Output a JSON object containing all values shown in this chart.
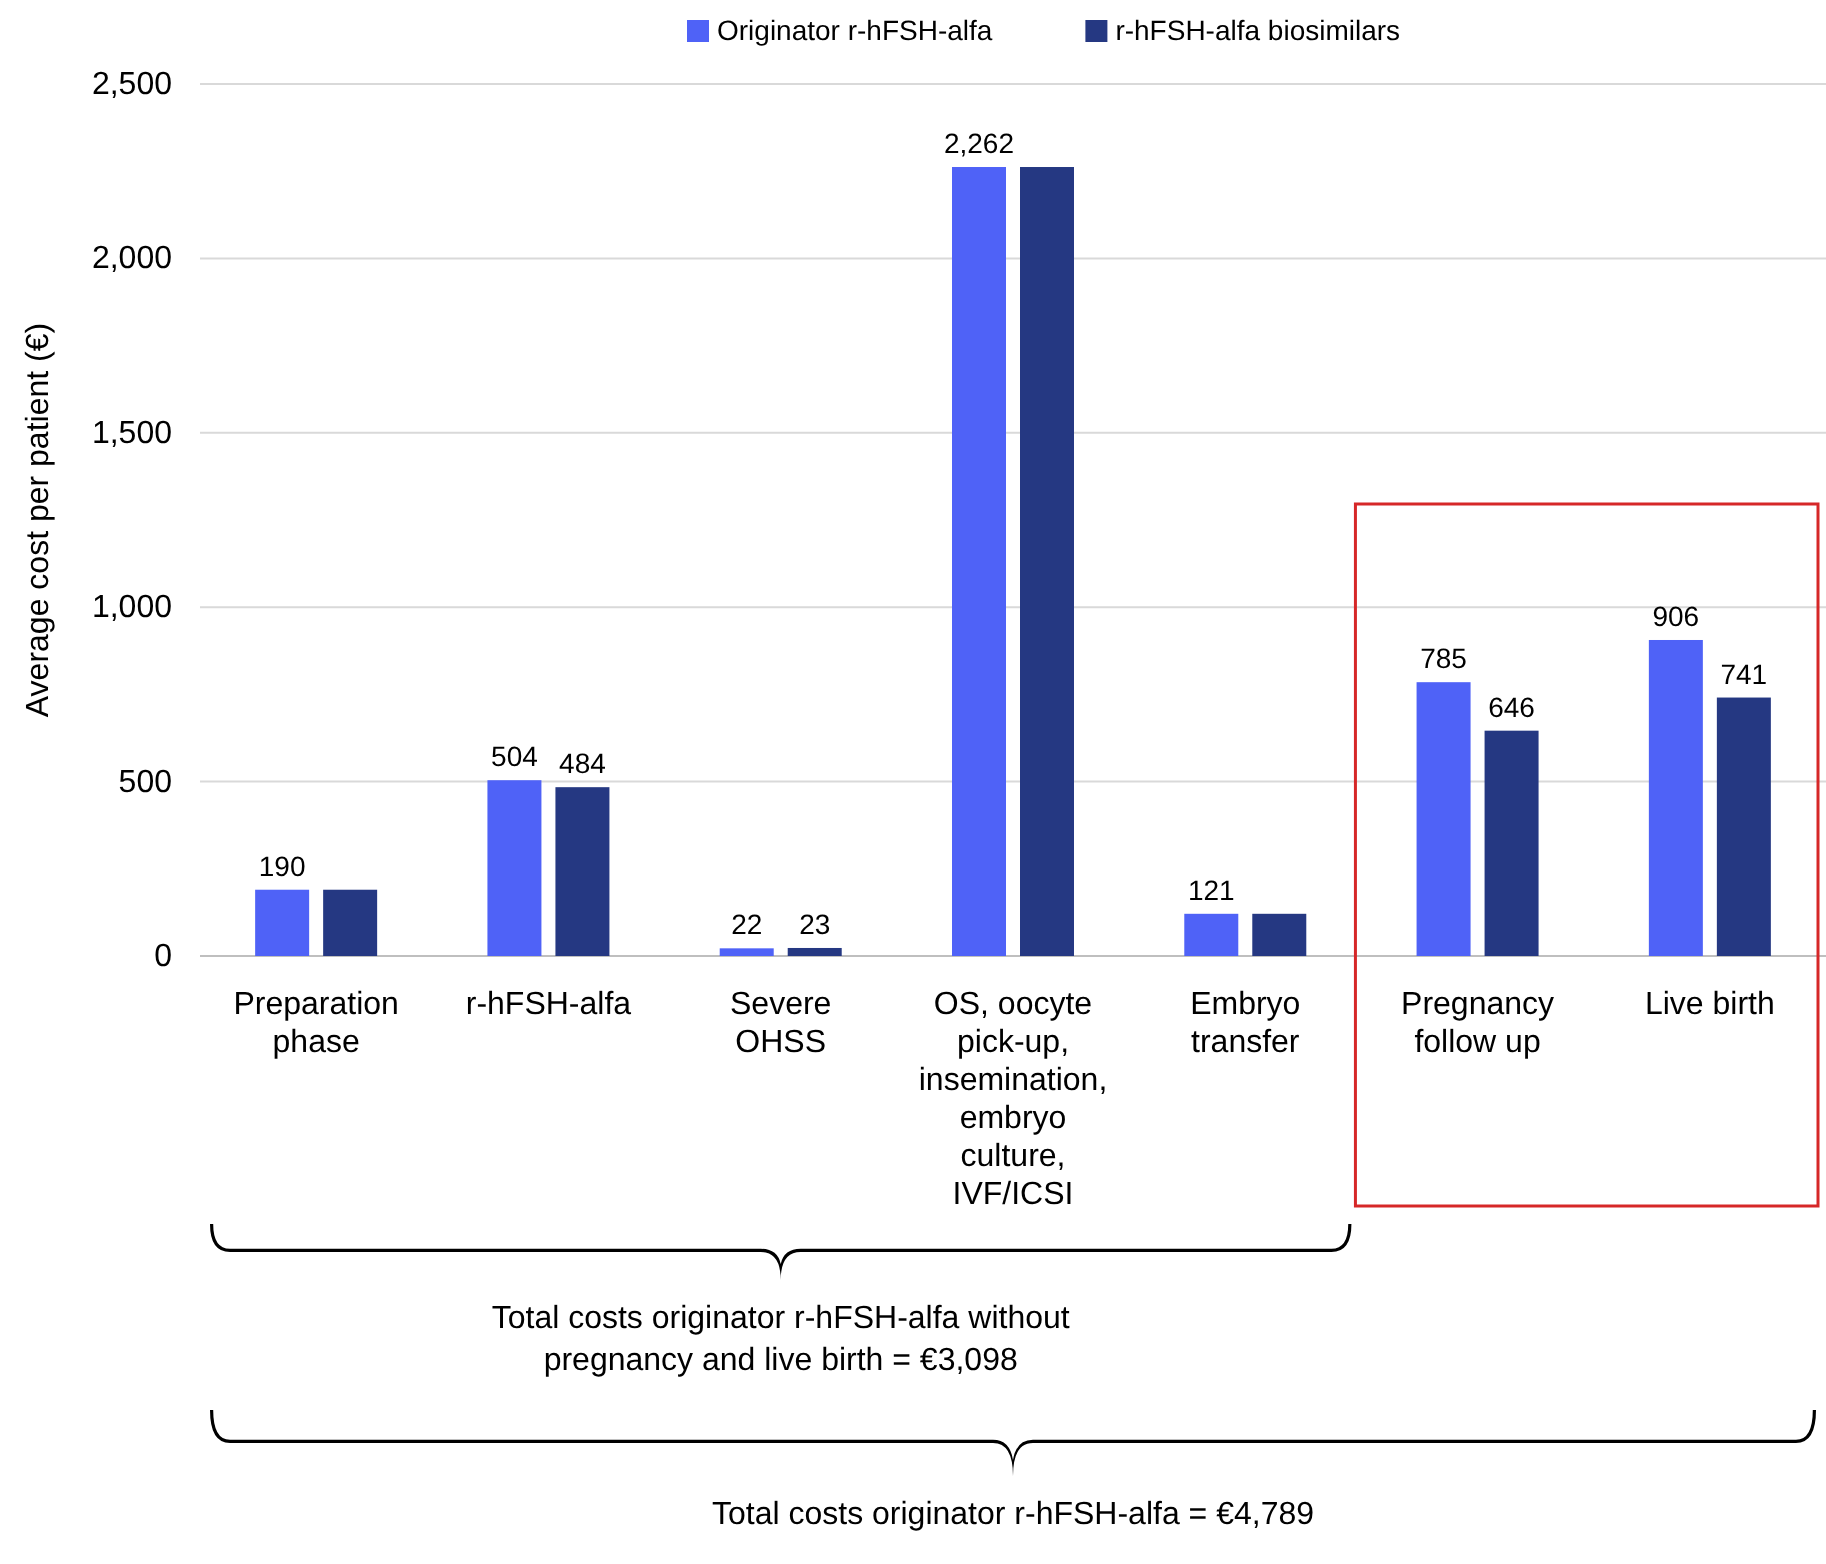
{
  "chart_data": {
    "type": "bar",
    "ylabel": "Average cost per patient (€)",
    "categories": [
      "Preparation phase",
      "r-hFSH-alfa",
      "Severe OHSS",
      "OS, oocyte pick-up, insemination, embryo culture, IVF/ICSI",
      "Embryo transfer",
      "Pregnancy follow up",
      "Live birth"
    ],
    "series": [
      {
        "name": "Originator r-hFSH-alfa",
        "color": "#4f62f7",
        "values": [
          190,
          504,
          22,
          2262,
          121,
          785,
          906
        ],
        "value_labels": [
          "190",
          "504",
          "22",
          "2,262",
          "121",
          "785",
          "906"
        ]
      },
      {
        "name": "r-hFSH-alfa biosimilars",
        "color": "#253882",
        "values": [
          190,
          484,
          23,
          2262,
          121,
          646,
          741
        ],
        "value_labels": [
          null,
          "484",
          "23",
          null,
          null,
          "646",
          "741"
        ]
      }
    ],
    "ylim": [
      0,
      2500
    ],
    "yticks": [
      0,
      {
        "value": 500,
        "label": "500"
      },
      {
        "value": 1000,
        "label": "1,000"
      },
      {
        "value": 1500,
        "label": "1,500"
      },
      {
        "value": 2000,
        "label": "2,000"
      },
      {
        "value": 2500,
        "label": "2,500"
      }
    ],
    "grid": "y",
    "legend": "top",
    "annotations": [
      "Total costs originator r-hFSH-alfa without pregnancy and live birth = €3,098",
      "Total costs originator r-hFSH-alfa = €4,789"
    ]
  }
}
